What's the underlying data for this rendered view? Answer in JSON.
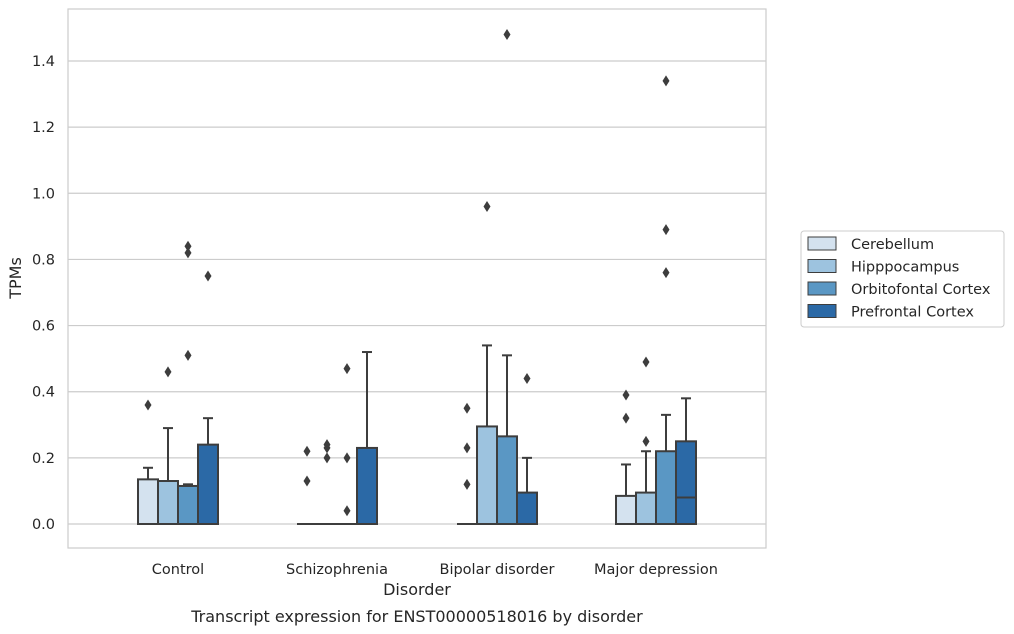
{
  "chart_data": {
    "type": "box",
    "caption": "Transcript expression for ENST00000518016 by disorder",
    "xlabel": "Disorder",
    "ylabel": "TPMs",
    "ylim": [
      -0.07,
      1.56
    ],
    "yticks": [
      0.0,
      0.2,
      0.4,
      0.6,
      0.8,
      1.0,
      1.2,
      1.4
    ],
    "ytick_labels": [
      "0.0",
      "0.2",
      "0.4",
      "0.6",
      "0.8",
      "1.0",
      "1.2",
      "1.4"
    ],
    "grid": "horizontal",
    "legend_position": "right",
    "categories": [
      "Control",
      "Schizophrenia",
      "Bipolar disorder",
      "Major depression"
    ],
    "series": [
      {
        "name": "Cerebellum",
        "color": "#d4e2ef",
        "boxes": [
          {
            "category": "Control",
            "q1": 0.0,
            "median": 0.0,
            "q3": 0.135,
            "whisker_low": 0.0,
            "whisker_high": 0.17,
            "outliers": [
              0.36
            ]
          },
          {
            "category": "Schizophrenia",
            "q1": 0.0,
            "median": 0.0,
            "q3": 0.0,
            "whisker_low": 0.0,
            "whisker_high": 0.0,
            "outliers": [
              0.13,
              0.22
            ]
          },
          {
            "category": "Bipolar disorder",
            "q1": 0.0,
            "median": 0.0,
            "q3": 0.0,
            "whisker_low": 0.0,
            "whisker_high": 0.0,
            "outliers": [
              0.12,
              0.23,
              0.35
            ]
          },
          {
            "category": "Major depression",
            "q1": 0.0,
            "median": 0.0,
            "q3": 0.085,
            "whisker_low": 0.0,
            "whisker_high": 0.18,
            "outliers": [
              0.32,
              0.39
            ]
          }
        ]
      },
      {
        "name": "Hipppocampus",
        "color": "#9dc3df",
        "boxes": [
          {
            "category": "Control",
            "q1": 0.0,
            "median": 0.0,
            "q3": 0.13,
            "whisker_low": 0.0,
            "whisker_high": 0.29,
            "outliers": [
              0.46
            ]
          },
          {
            "category": "Schizophrenia",
            "q1": 0.0,
            "median": 0.0,
            "q3": 0.0,
            "whisker_low": 0.0,
            "whisker_high": 0.0,
            "outliers": [
              0.2,
              0.23,
              0.24
            ]
          },
          {
            "category": "Bipolar disorder",
            "q1": 0.0,
            "median": 0.0,
            "q3": 0.295,
            "whisker_low": 0.0,
            "whisker_high": 0.54,
            "outliers": [
              0.96
            ]
          },
          {
            "category": "Major depression",
            "q1": 0.0,
            "median": 0.0,
            "q3": 0.095,
            "whisker_low": 0.0,
            "whisker_high": 0.22,
            "outliers": [
              0.25,
              0.49
            ]
          }
        ]
      },
      {
        "name": "Orbitofontal Cortex",
        "color": "#5a97c4",
        "boxes": [
          {
            "category": "Control",
            "q1": 0.0,
            "median": 0.0,
            "q3": 0.115,
            "whisker_low": 0.0,
            "whisker_high": 0.12,
            "outliers": [
              0.51,
              0.82,
              0.84
            ]
          },
          {
            "category": "Schizophrenia",
            "q1": 0.0,
            "median": 0.0,
            "q3": 0.0,
            "whisker_low": 0.0,
            "whisker_high": 0.0,
            "outliers": [
              0.04,
              0.2,
              0.47
            ]
          },
          {
            "category": "Bipolar disorder",
            "q1": 0.0,
            "median": 0.0,
            "q3": 0.265,
            "whisker_low": 0.0,
            "whisker_high": 0.51,
            "outliers": [
              1.48
            ]
          },
          {
            "category": "Major depression",
            "q1": 0.0,
            "median": 0.0,
            "q3": 0.22,
            "whisker_low": 0.0,
            "whisker_high": 0.33,
            "outliers": [
              0.76,
              0.89,
              1.34
            ]
          }
        ]
      },
      {
        "name": "Prefrontal Cortex",
        "color": "#2b69a6",
        "boxes": [
          {
            "category": "Control",
            "q1": 0.0,
            "median": 0.0,
            "q3": 0.24,
            "whisker_low": 0.0,
            "whisker_high": 0.32,
            "outliers": [
              0.75
            ]
          },
          {
            "category": "Schizophrenia",
            "q1": 0.0,
            "median": 0.0,
            "q3": 0.23,
            "whisker_low": 0.0,
            "whisker_high": 0.52,
            "outliers": []
          },
          {
            "category": "Bipolar disorder",
            "q1": 0.0,
            "median": 0.0,
            "q3": 0.095,
            "whisker_low": 0.0,
            "whisker_high": 0.2,
            "outliers": [
              0.44
            ]
          },
          {
            "category": "Major depression",
            "q1": 0.0,
            "median": 0.08,
            "q3": 0.25,
            "whisker_low": 0.0,
            "whisker_high": 0.38,
            "outliers": []
          }
        ]
      }
    ],
    "legend": [
      "Cerebellum",
      "Hipppocampus",
      "Orbitofontal Cortex",
      "Prefrontal Cortex"
    ]
  }
}
